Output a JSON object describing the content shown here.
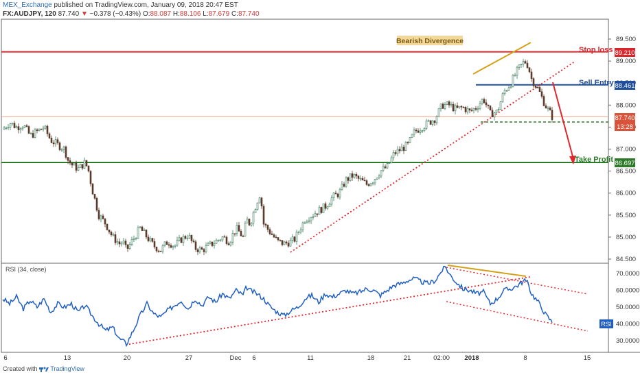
{
  "header": {
    "publisher": "MEX_Exchange",
    "published_text": "published on TradingView.com, January 09, 2018 20:47 EST",
    "symbol": "FX:AUDJPY, 120",
    "last": "87.740",
    "change_arrow": "▼",
    "change": "−0.378 (−0.43%)",
    "o_label": "O:",
    "o_value": "88.087",
    "h_label": "H:",
    "h_value": "88.106",
    "l_label": "L:",
    "l_value": "87.679",
    "c_label": "C:",
    "c_value": "87.740"
  },
  "annotations": {
    "bearish_divergence": "Bearish Divergence",
    "stop_loss": "Stop loss",
    "sell_entry": "Sell Entry",
    "take_profit": "Take Profit"
  },
  "price_tags": {
    "stop_loss": "89.210",
    "sell_entry": "88.461",
    "last": "87.740",
    "countdown": "13:28",
    "take_profit": "86.697"
  },
  "rsi": {
    "label": "RSI (34, close)",
    "tag": "RSI"
  },
  "footer": {
    "created_with": "Created with",
    "brand": "TradingView"
  },
  "colors": {
    "up_candle": "#3a7a5a",
    "down_candle": "#5a3a2a",
    "stop_loss": "#d9262c",
    "sell_entry": "#1f4e9c",
    "take_profit": "#2d7a2a",
    "divergence": "#d4a017",
    "rsi_line": "#1f5ec4",
    "trendline": "#e0262c"
  },
  "chart_data": [
    {
      "type": "candlestick",
      "symbol": "FX:AUDJPY",
      "timeframe": "120",
      "x_tick_labels": [
        "6",
        "13",
        "20",
        "27",
        "Dec",
        "6",
        "11",
        "18",
        "21",
        "02:00",
        "2018",
        "8",
        "15"
      ],
      "y_ticks": [
        84.5,
        85.0,
        85.5,
        86.0,
        86.5,
        87.0,
        87.5,
        88.0,
        88.5,
        89.0,
        89.5
      ],
      "y_tick_labels": [
        "84.500",
        "85.000",
        "85.500",
        "86.000",
        "86.500",
        "87.000",
        "87.500",
        "88.000",
        "88.500",
        "89.000",
        "89.500"
      ],
      "ylim": [
        84.4,
        90.0
      ],
      "close_path": {
        "x": [
          0,
          10,
          20,
          30,
          40,
          50,
          60,
          70,
          80,
          90,
          95,
          100,
          110,
          120,
          125,
          130,
          135,
          140,
          150,
          160,
          170,
          175,
          180,
          190,
          200,
          210,
          220,
          230,
          240,
          250,
          260,
          270,
          280,
          290,
          300,
          310,
          320,
          330,
          340,
          350,
          355,
          360,
          370,
          375,
          380,
          390,
          400,
          410,
          420,
          425,
          430,
          440,
          450,
          460,
          470,
          480,
          490,
          500,
          510,
          520,
          530,
          540,
          550,
          560,
          570,
          580,
          590,
          600,
          610,
          620,
          630,
          640,
          650,
          660,
          670,
          680,
          690,
          700,
          710,
          720,
          730,
          740,
          750,
          760,
          765,
          770,
          780,
          790,
          800
        ],
        "y": [
          87.45,
          87.6,
          87.5,
          87.55,
          87.3,
          87.4,
          87.5,
          87.2,
          87.1,
          87.0,
          86.75,
          86.65,
          86.55,
          86.7,
          86.5,
          86.1,
          85.8,
          85.5,
          85.3,
          85.0,
          84.85,
          84.9,
          84.7,
          84.95,
          85.2,
          85.0,
          84.8,
          84.7,
          84.9,
          84.8,
          84.95,
          85.05,
          84.75,
          84.7,
          84.8,
          84.9,
          85.0,
          84.9,
          85.2,
          85.0,
          85.4,
          85.3,
          85.8,
          86.0,
          85.3,
          85.1,
          84.9,
          84.85,
          84.9,
          84.95,
          85.1,
          85.4,
          85.5,
          85.6,
          85.7,
          85.9,
          86.0,
          86.3,
          86.4,
          86.3,
          86.2,
          86.3,
          86.5,
          86.6,
          86.9,
          87.0,
          87.1,
          87.4,
          87.5,
          87.6,
          87.7,
          88.0,
          88.0,
          87.9,
          87.95,
          87.85,
          87.95,
          88.15,
          87.8,
          87.85,
          88.3,
          88.5,
          88.8,
          89.0,
          88.9,
          88.6,
          88.35,
          88.0,
          87.74
        ]
      },
      "horizontal_levels": [
        {
          "name": "Stop loss",
          "value": 89.21
        },
        {
          "name": "Sell Entry",
          "value": 88.461
        },
        {
          "name": "Take Profit",
          "value": 86.697
        }
      ],
      "last_price": 87.74
    },
    {
      "type": "line",
      "title": "RSI (34, close)",
      "y_ticks": [
        30,
        40,
        50,
        60,
        70
      ],
      "y_tick_labels": [
        "30.0000",
        "40.0000",
        "50.0000",
        "60.0000",
        "70.0000"
      ],
      "ylim": [
        26,
        75
      ],
      "series": [
        {
          "name": "RSI",
          "x": [
            0,
            10,
            20,
            30,
            40,
            50,
            60,
            70,
            80,
            90,
            100,
            110,
            120,
            130,
            140,
            150,
            160,
            170,
            175,
            180,
            190,
            200,
            210,
            220,
            230,
            240,
            250,
            260,
            270,
            280,
            290,
            300,
            310,
            320,
            330,
            340,
            350,
            355,
            360,
            370,
            380,
            390,
            400,
            410,
            420,
            430,
            440,
            450,
            460,
            470,
            480,
            490,
            500,
            510,
            520,
            530,
            540,
            550,
            560,
            570,
            580,
            590,
            600,
            610,
            620,
            630,
            640,
            645,
            650,
            660,
            670,
            680,
            690,
            700,
            710,
            720,
            730,
            740,
            750,
            760,
            765,
            770,
            780,
            790,
            800
          ],
          "y": [
            55,
            52,
            56,
            49,
            54,
            50,
            55,
            47,
            52,
            50,
            52,
            47,
            51,
            45,
            40,
            36,
            38,
            31,
            30,
            28,
            36,
            45,
            52,
            46,
            44,
            48,
            51,
            54,
            49,
            55,
            51,
            56,
            53,
            58,
            55,
            60,
            57,
            62,
            60,
            58,
            55,
            50,
            47,
            45,
            48,
            50,
            55,
            57,
            53,
            58,
            56,
            58,
            60,
            58,
            59,
            61,
            60,
            57,
            60,
            63,
            64,
            66,
            67,
            65,
            64,
            66,
            72,
            74,
            70,
            65,
            61,
            60,
            58,
            59,
            52,
            55,
            60,
            61,
            63,
            66,
            64,
            58,
            53,
            46,
            41
          ]
        }
      ]
    }
  ]
}
